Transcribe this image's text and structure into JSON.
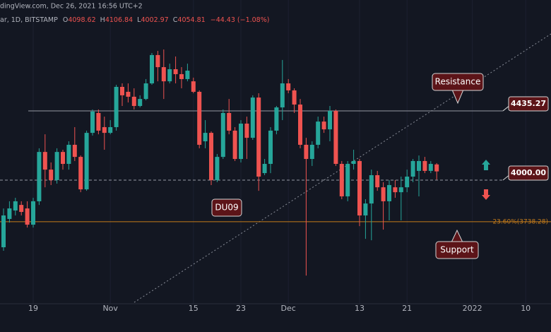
{
  "chart_data": {
    "type": "candlestick",
    "title": "dingView.com, Dec 26, 2021 16:56 UTC+2",
    "subtitle": "ar, 1D, BITSTAMP",
    "ohlc_legend": [
      {
        "label": "O",
        "value": "4098.62"
      },
      {
        "label": "H",
        "value": "4106.84"
      },
      {
        "label": "L",
        "value": "4002.97"
      },
      {
        "label": "C",
        "value": "4054.81"
      }
    ],
    "change": "−44.43 (−1.08%)",
    "x": [
      "2021-10-14",
      "2021-10-15",
      "2021-10-16",
      "2021-10-17",
      "2021-10-18",
      "2021-10-19",
      "2021-10-20",
      "2021-10-21",
      "2021-10-22",
      "2021-10-23",
      "2021-10-24",
      "2021-10-25",
      "2021-10-26",
      "2021-10-27",
      "2021-10-28",
      "2021-10-29",
      "2021-10-30",
      "2021-10-31",
      "2021-11-01",
      "2021-11-02",
      "2021-11-03",
      "2021-11-04",
      "2021-11-05",
      "2021-11-06",
      "2021-11-07",
      "2021-11-08",
      "2021-11-09",
      "2021-11-10",
      "2021-11-11",
      "2021-11-12",
      "2021-11-13",
      "2021-11-14",
      "2021-11-15",
      "2021-11-16",
      "2021-11-17",
      "2021-11-18",
      "2021-11-19",
      "2021-11-20",
      "2021-11-21",
      "2021-11-22",
      "2021-11-23",
      "2021-11-24",
      "2021-11-25",
      "2021-11-26",
      "2021-11-27",
      "2021-11-28",
      "2021-11-29",
      "2021-11-30",
      "2021-12-01",
      "2021-12-02",
      "2021-12-03",
      "2021-12-04",
      "2021-12-05",
      "2021-12-06",
      "2021-12-07",
      "2021-12-08",
      "2021-12-09",
      "2021-12-10",
      "2021-12-11",
      "2021-12-12",
      "2021-12-13",
      "2021-12-14",
      "2021-12-15",
      "2021-12-16",
      "2021-12-17",
      "2021-12-18",
      "2021-12-19",
      "2021-12-20",
      "2021-12-21",
      "2021-12-22",
      "2021-12-23",
      "2021-12-24",
      "2021-12-25",
      "2021-12-26"
    ],
    "open": [
      3578,
      3756,
      3809,
      3844,
      3822,
      3720,
      3867,
      4177,
      4066,
      4000,
      4177,
      4102,
      4222,
      4146,
      3942,
      4297,
      4422,
      4333,
      4297,
      4333,
      4586,
      4555,
      4524,
      4466,
      4510,
      4608,
      4786,
      4710,
      4621,
      4697,
      4666,
      4635,
      4621,
      4555,
      4244,
      4297,
      4000,
      4146,
      4422,
      4311,
      4133,
      4355,
      4266,
      4519,
      4044,
      4102,
      4311,
      4457,
      4608,
      4564,
      4475,
      4222,
      4133,
      4222,
      4368,
      4319,
      4435,
      4102,
      3898,
      4102,
      4120,
      3778,
      3853,
      4031,
      3955,
      3867,
      3955,
      3924,
      3955,
      4022,
      4058,
      4120,
      4058,
      4098.62
    ],
    "high": [
      3822,
      3867,
      3889,
      3867,
      3867,
      3889,
      4200,
      4288,
      4111,
      4200,
      4191,
      4244,
      4333,
      4155,
      4311,
      4444,
      4444,
      4399,
      4377,
      4599,
      4608,
      4608,
      4577,
      4533,
      4635,
      4799,
      4812,
      4821,
      4732,
      4777,
      4710,
      4732,
      4644,
      4564,
      4377,
      4306,
      4164,
      4444,
      4510,
      4333,
      4377,
      4399,
      4533,
      4546,
      4133,
      4333,
      4466,
      4755,
      4635,
      4577,
      4510,
      4266,
      4244,
      4399,
      4399,
      4466,
      4444,
      4120,
      4120,
      4191,
      4133,
      3880,
      4066,
      4058,
      3987,
      4000,
      4000,
      4022,
      4066,
      4133,
      4155,
      4146,
      4120,
      4106.84
    ],
    "low": [
      3556,
      3733,
      3778,
      3778,
      3702,
      3702,
      3844,
      3955,
      3969,
      3978,
      4066,
      4066,
      4120,
      3924,
      3933,
      4280,
      4288,
      4191,
      4288,
      4311,
      4466,
      4488,
      4444,
      4457,
      4502,
      4599,
      4621,
      4510,
      4608,
      4608,
      4577,
      4621,
      4546,
      4200,
      4200,
      3969,
      3987,
      4133,
      4288,
      4120,
      4111,
      4133,
      4253,
      3933,
      4031,
      4044,
      4288,
      4377,
      4546,
      4422,
      4200,
      3400,
      4089,
      4200,
      4297,
      4244,
      4089,
      3880,
      3867,
      4066,
      3711,
      3631,
      3622,
      3933,
      3689,
      3747,
      3889,
      3747,
      3924,
      3987,
      3898,
      4044,
      4044,
      4002.97
    ],
    "close": [
      3778,
      3822,
      3867,
      3800,
      3720,
      3867,
      4177,
      4066,
      4000,
      4177,
      4102,
      4222,
      4146,
      3942,
      4297,
      4431,
      4311,
      4297,
      4333,
      4586,
      4533,
      4524,
      4466,
      4510,
      4608,
      4786,
      4710,
      4621,
      4697,
      4666,
      4635,
      4688,
      4555,
      4222,
      4297,
      4000,
      4146,
      4422,
      4311,
      4133,
      4355,
      4266,
      4519,
      4022,
      4102,
      4311,
      4457,
      4608,
      4564,
      4475,
      4222,
      4133,
      4222,
      4368,
      4319,
      4435,
      4102,
      3898,
      4102,
      4120,
      3778,
      3853,
      4031,
      3955,
      3867,
      3969,
      3924,
      3955,
      4022,
      4120,
      4120,
      4058,
      4102,
      4054.81
    ],
    "up_color": "#26a69a",
    "down_color": "#ef5350",
    "ylim": [
      3223,
      5132
    ],
    "xticks": [
      {
        "value": "2021-10-19",
        "label": "19"
      },
      {
        "value": "2021-11-01",
        "label": "Nov"
      },
      {
        "value": "2021-11-15",
        "label": "15"
      },
      {
        "value": "2021-11-23",
        "label": "23"
      },
      {
        "value": "2021-12-01",
        "label": "Dec"
      },
      {
        "value": "2021-12-13",
        "label": "13"
      },
      {
        "value": "2021-12-21",
        "label": "21"
      },
      {
        "value": "2022-01-01",
        "label": "2022"
      },
      {
        "value": "2022-01-10",
        "label": "10"
      }
    ],
    "grid": true,
    "levels": [
      {
        "value": 4435.27,
        "label": "4435.27",
        "style": "solid"
      },
      {
        "value": 4000,
        "label": "4000.00",
        "style": "dashed"
      },
      {
        "value": 3738.28,
        "label": "23.60%(3738.28)",
        "style": "fib"
      }
    ],
    "annotations": [
      "Resistance",
      "Support",
      "DU09"
    ]
  }
}
